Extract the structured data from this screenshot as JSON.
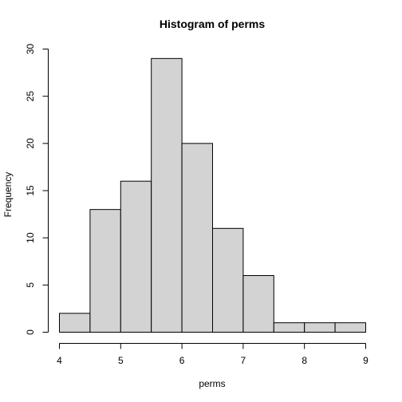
{
  "chart_data": {
    "type": "bar",
    "title": "Histogram of perms",
    "xlabel": "perms",
    "ylabel": "Frequency",
    "bins": [
      {
        "start": 4.0,
        "end": 4.5,
        "count": 2
      },
      {
        "start": 4.5,
        "end": 5.0,
        "count": 13
      },
      {
        "start": 5.0,
        "end": 5.5,
        "count": 16
      },
      {
        "start": 5.5,
        "end": 6.0,
        "count": 29
      },
      {
        "start": 6.0,
        "end": 6.5,
        "count": 20
      },
      {
        "start": 6.5,
        "end": 7.0,
        "count": 11
      },
      {
        "start": 7.0,
        "end": 7.5,
        "count": 6
      },
      {
        "start": 7.5,
        "end": 8.0,
        "count": 1
      },
      {
        "start": 8.0,
        "end": 8.5,
        "count": 1
      },
      {
        "start": 8.5,
        "end": 9.0,
        "count": 1
      }
    ],
    "xlim": [
      4,
      9
    ],
    "ylim": [
      0,
      30
    ],
    "xticks": [
      "4",
      "5",
      "6",
      "7",
      "8",
      "9"
    ],
    "yticks": [
      "0",
      "5",
      "10",
      "15",
      "20",
      "25",
      "30"
    ],
    "grid": false,
    "colors": {
      "bar_fill": "#d3d3d3",
      "bar_stroke": "#000000"
    }
  }
}
